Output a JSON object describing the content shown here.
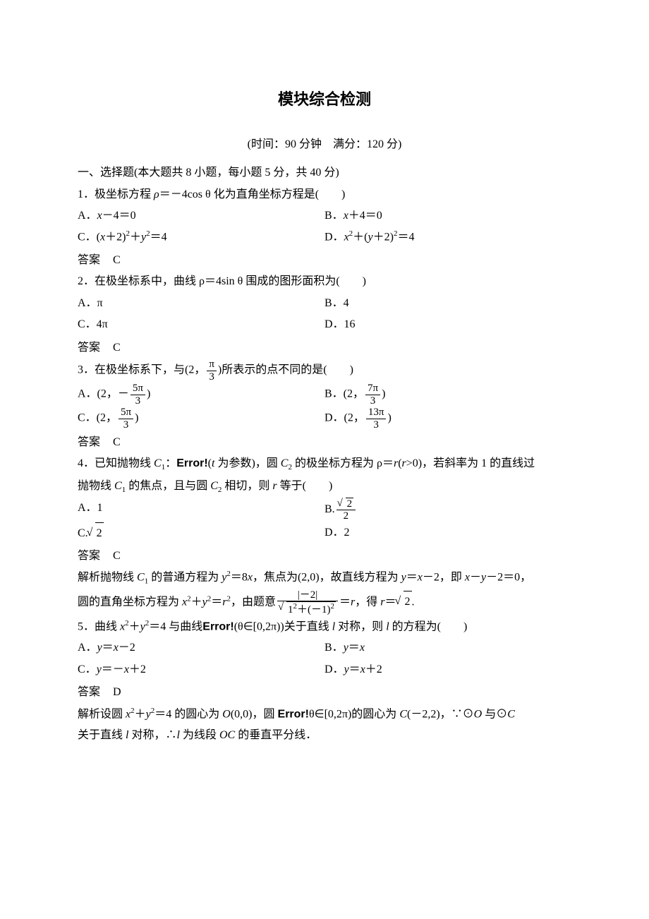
{
  "title": "模块综合检测",
  "subtitle": "(时间：90 分钟　满分：120 分)",
  "section1": "一、选择题(本大题共 8 小题，每小题 5 分，共 40 分)",
  "q1": {
    "stem_pre": "1．极坐标方程 ",
    "stem_post": "＝－4cos θ 化为直角坐标方程是(　　)",
    "A_pre": "A．",
    "A_post": "－4＝0",
    "B_pre": "B．",
    "B_post": "＋4＝0",
    "C": "C．(",
    "C2": "＋2)",
    "C3": "＋",
    "C4": "＝4",
    "D": "D．",
    "D2": "＋(",
    "D3": "＋2)",
    "D4": "＝4"
  },
  "ans_label": "答案",
  "q1_ans": "C",
  "q2": {
    "stem": "2．在极坐标系中，曲线 ρ＝4sin θ 围成的图形面积为(　　)",
    "A": "A．π",
    "B": "B．4",
    "C": "C．4π",
    "D": "D．16"
  },
  "q2_ans": "C",
  "q3": {
    "stem_pre": "3．在极坐标系下，与(2，",
    "stem_post": ")所表示的点不同的是(　　)",
    "A_pre": "A．(2，－",
    "A_post": ")",
    "B_pre": "B．(2，",
    "B_post": ")",
    "C_pre": "C．(2，",
    "C_post": ")",
    "D_pre": "D．(2，",
    "D_post": ")"
  },
  "q3_frac": {
    "pi3_n": "π",
    "pi3_d": "3",
    "n5pi3_n": "5π",
    "n5pi3_d": "3",
    "n7pi3_n": "7π",
    "n7pi3_d": "3",
    "n13pi3_n": "13π",
    "n13pi3_d": "3"
  },
  "q3_ans": "C",
  "q4": {
    "stem1_a": "4．已知抛物线 ",
    "stem1_b": "：",
    "err": "Error!",
    "stem1_c": "(",
    "stem1_d": " 为参数)，圆 ",
    "stem1_e": " 的极坐标方程为 ρ＝",
    "stem1_f": "(",
    "stem1_g": ">0)，若斜率为 1 的直线过",
    "stem2_a": "抛物线 ",
    "stem2_b": " 的焦点，且与圆 ",
    "stem2_c": " 相切，则 ",
    "stem2_d": " 等于(　　)",
    "A": "A．1",
    "B": "B.",
    "C": "C.",
    "D": "D．2",
    "sqrt2": "2",
    "f2": "2"
  },
  "q4_ans": "C",
  "jiexi_label": "解析",
  "q4_jiexi": {
    "l1_a": "抛物线 ",
    "l1_b": " 的普通方程为 ",
    "l1_c": "＝8",
    "l1_d": "，焦点为(2,0)，故直线方程为 ",
    "l1_e": "＝",
    "l1_f": "－2，即 ",
    "l1_g": "－",
    "l1_h": "－2＝0，",
    "l2_a": "圆的直角坐标方程为 ",
    "l2_b": "＋",
    "l2_c": "＝",
    "l2_d": "，由题意",
    "l2_e": "＝",
    "l2_f": "，得 ",
    "l2_g": "＝",
    "fnum": "|－2|",
    "fden_a": "1",
    "fden_b": "＋(－1)"
  },
  "q5": {
    "stem_a": "5．曲线 ",
    "stem_b": "＋",
    "stem_c": "＝4 与曲线",
    "err": "Error!",
    "stem_d": "(θ∈[0,2π))关于直线 ",
    "stem_e": " 对称，则 ",
    "stem_f": " 的方程为(　　)",
    "A_a": "A．",
    "A_b": "＝",
    "A_c": "－2",
    "B_a": "B．",
    "B_b": "＝",
    "C_a": "C．",
    "C_b": "＝－",
    "C_c": "＋2",
    "D_a": "D．",
    "D_b": "＝",
    "D_c": "＋2"
  },
  "q5_ans": "D",
  "q5_jiexi": {
    "l1_a": "设圆 ",
    "l1_b": "＋",
    "l1_c": "＝4 的圆心为 ",
    "l1_d": "(0,0)，圆 ",
    "err": "Error!",
    "l1_e": "θ∈[0,2π)的圆心为 ",
    "l1_f": "(－2,2)，∵⊙",
    "l1_g": " 与⊙",
    "l2_a": "关于直线 ",
    "l2_b": " 对称，∴",
    "l2_c": " 为线段 ",
    "l2_d": " 的垂直平分线．"
  }
}
